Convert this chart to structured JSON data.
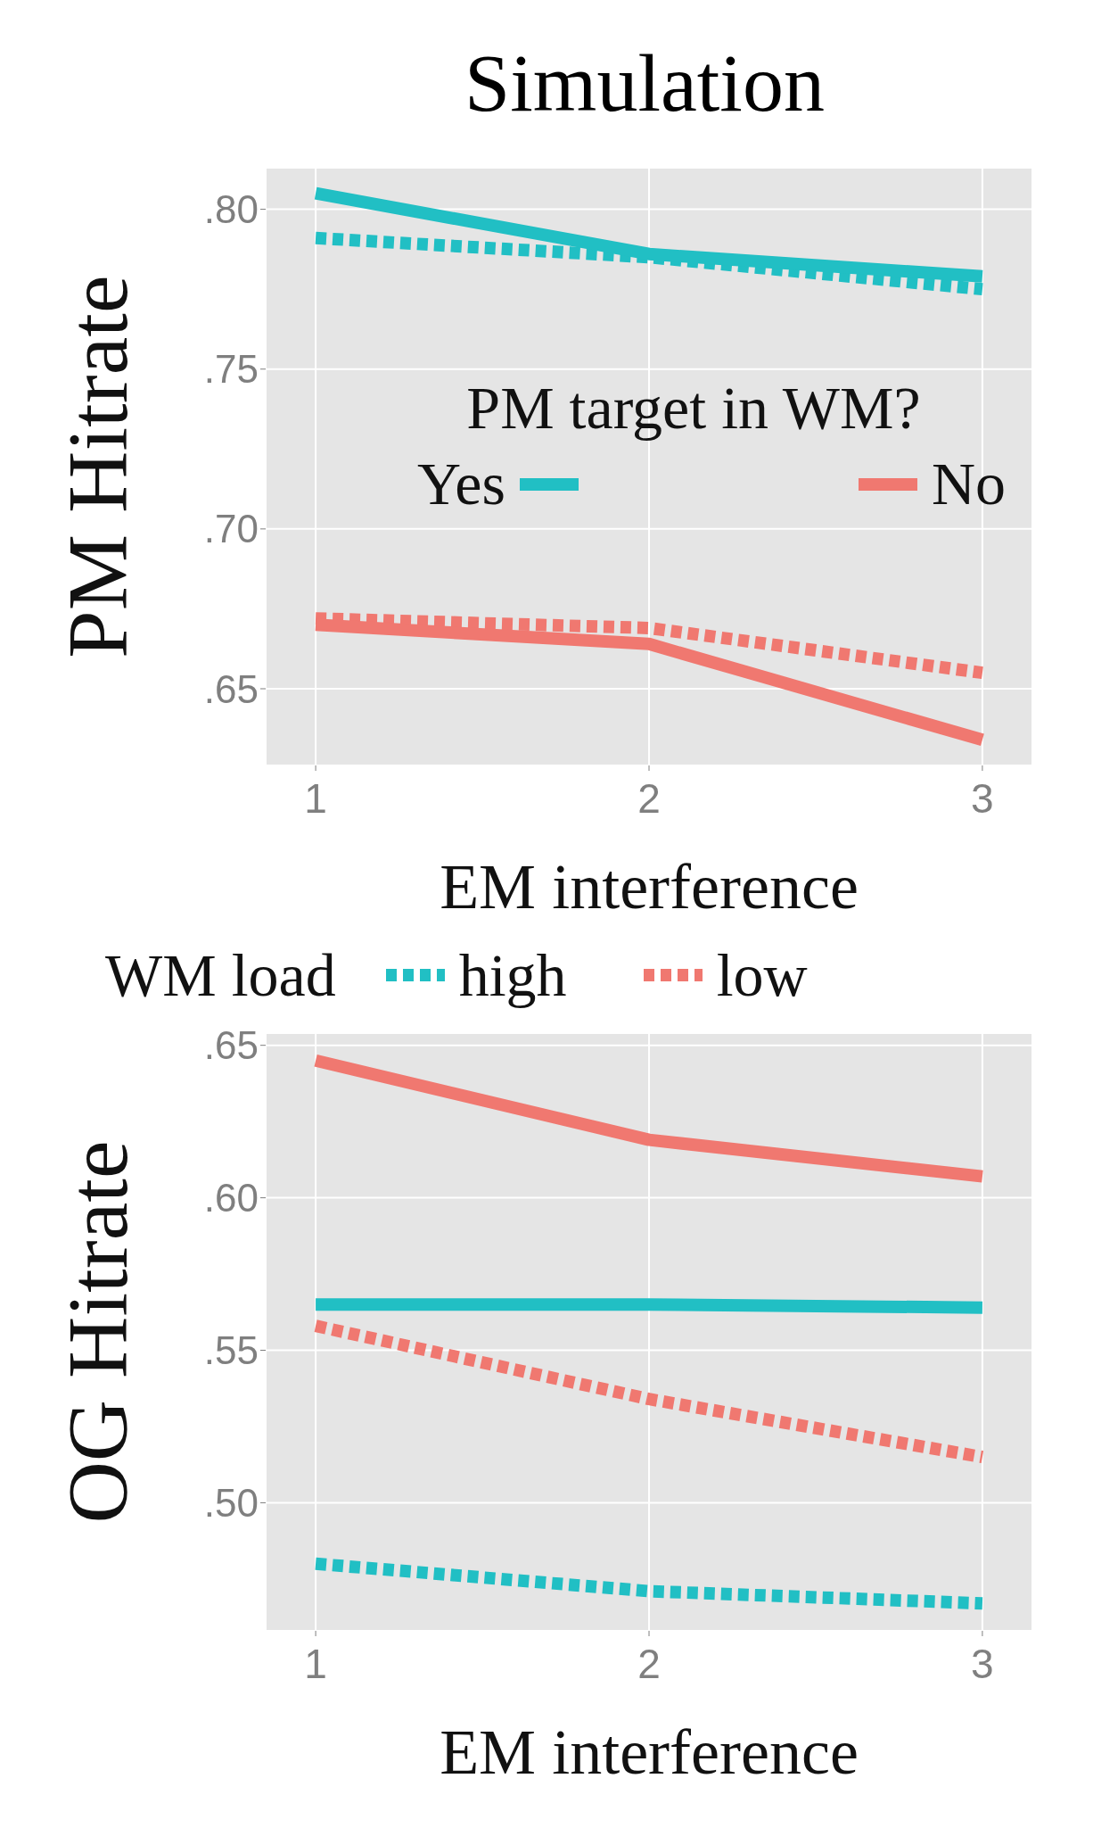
{
  "chart_data": [
    {
      "type": "line",
      "title": "Simulation",
      "xlabel": "EM interference",
      "ylabel": "PM Hitrate",
      "x": [
        1,
        2,
        3
      ],
      "xlim": [
        0.85,
        3.15
      ],
      "xticks": [
        1,
        2,
        3
      ],
      "ylim": [
        0.626,
        0.813
      ],
      "yticks": [
        {
          "value": 0.65,
          "label": ".65"
        },
        {
          "value": 0.7,
          "label": ".70"
        },
        {
          "value": 0.75,
          "label": ".75"
        },
        {
          "value": 0.8,
          "label": ".80"
        }
      ],
      "grid": true,
      "marker": "none",
      "annotations": [
        "PM target in WM?",
        "Yes",
        "No",
        "WM load",
        "high",
        "low"
      ],
      "series": [
        {
          "color": "#21bfc4",
          "line_style": "dotted",
          "values": [
            0.791,
            0.785,
            0.775
          ]
        },
        {
          "color": "#21bfc4",
          "line_style": "solid",
          "values": [
            0.805,
            0.786,
            0.779
          ]
        },
        {
          "color": "#f07870",
          "line_style": "dotted",
          "values": [
            0.672,
            0.669,
            0.655
          ]
        },
        {
          "color": "#f07870",
          "line_style": "solid",
          "values": [
            0.67,
            0.664,
            0.634
          ]
        }
      ]
    },
    {
      "type": "line",
      "xlabel": "EM interference",
      "ylabel": "OG Hitrate",
      "x": [
        1,
        2,
        3
      ],
      "xlim": [
        0.85,
        3.15
      ],
      "xticks": [
        1,
        2,
        3
      ],
      "ylim": [
        0.458,
        0.654
      ],
      "yticks": [
        {
          "value": 0.5,
          "label": ".50"
        },
        {
          "value": 0.55,
          "label": ".55"
        },
        {
          "value": 0.6,
          "label": ".60"
        },
        {
          "value": 0.65,
          "label": ".65"
        }
      ],
      "grid": true,
      "marker": "none",
      "series": [
        {
          "color": "#21bfc4",
          "line_style": "dotted",
          "values": [
            0.48,
            0.471,
            0.467
          ]
        },
        {
          "color": "#21bfc4",
          "line_style": "solid",
          "values": [
            0.565,
            0.565,
            0.564
          ]
        },
        {
          "color": "#f07870",
          "line_style": "dotted",
          "values": [
            0.558,
            0.534,
            0.515
          ]
        },
        {
          "color": "#f07870",
          "line_style": "solid",
          "values": [
            0.645,
            0.619,
            0.607
          ]
        }
      ]
    }
  ]
}
